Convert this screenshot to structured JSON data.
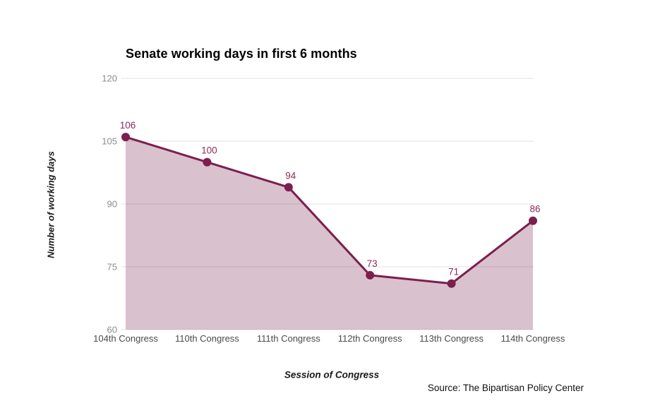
{
  "chart_data": {
    "type": "area",
    "title": "Senate working days in first 6 months",
    "xlabel": "Session of Congress",
    "ylabel": "Number of working days",
    "categories": [
      "104th Congress",
      "110th Congress",
      "111th Congress",
      "112th Congress",
      "113th Congress",
      "114th Congress"
    ],
    "values": [
      106,
      100,
      94,
      73,
      71,
      86
    ],
    "ylim": [
      60,
      120
    ],
    "yticks": [
      60,
      75,
      90,
      105,
      120
    ],
    "grid": true,
    "legend": "none",
    "colors": {
      "line": "#7b1f4e",
      "point": "#7b1f4e",
      "area_fill": "#7b1f4e",
      "area_opacity": "0.28",
      "value_label": "#8d2a5b",
      "gridline": "#e2e2e2",
      "ytick_text": "#8c8c8c",
      "xtick_text": "#4a4a4a"
    }
  },
  "source": {
    "label": "Source: The Bipartisan Policy Center"
  }
}
